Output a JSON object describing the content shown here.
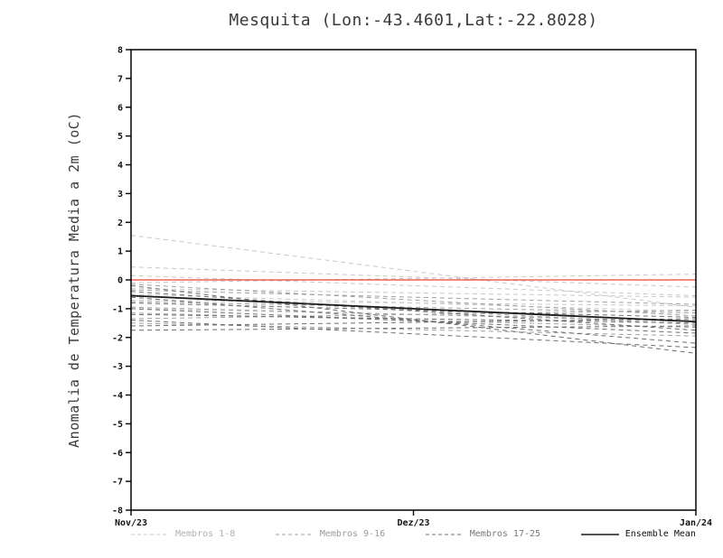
{
  "chart_data": {
    "type": "line",
    "title": "Mesquita (Lon:-43.4601,Lat:-22.8028)",
    "ylabel": "Anomalia de Temperatura Media a 2m (oC)",
    "ylim": [
      -8,
      8
    ],
    "ytick_step": 1,
    "x_labels": [
      "Nov/23",
      "Dez/23",
      "Jan/24"
    ],
    "x_positions": [
      0,
      0.5,
      1
    ],
    "grid": false,
    "legend_position": "bottom",
    "reference_line": {
      "value": 0,
      "color": "#f04038"
    },
    "series": [
      {
        "name": "Membros 1-8",
        "color": "#c8c8c8",
        "legend_text_color": "#b2b2b2",
        "dashed": true,
        "members": [
          [
            1.55,
            -0.95
          ],
          [
            0.45,
            -0.25
          ],
          [
            0.15,
            -0.55
          ],
          [
            -0.1,
            0.2
          ],
          [
            -0.3,
            -0.6
          ],
          [
            -0.5,
            -1.1
          ],
          [
            -0.7,
            -0.9
          ],
          [
            -1.0,
            -1.4
          ]
        ]
      },
      {
        "name": "Membros 9-16",
        "color": "#a0a0a0",
        "legend_text_color": "#9a9a9a",
        "dashed": true,
        "members": [
          [
            -0.15,
            -1.25
          ],
          [
            -0.35,
            -0.85
          ],
          [
            -0.55,
            -1.55
          ],
          [
            -0.75,
            -1.15
          ],
          [
            -0.95,
            -1.45
          ],
          [
            -1.15,
            -1.65
          ],
          [
            -1.35,
            -1.05
          ],
          [
            -1.5,
            -1.95
          ]
        ]
      },
      {
        "name": "Membros 17-25",
        "color": "#6e6e6e",
        "legend_text_color": "#787878",
        "dashed": true,
        "members": [
          [
            -0.2,
            -2.55
          ],
          [
            -0.4,
            -1.75
          ],
          [
            -0.6,
            -2.2
          ],
          [
            -0.8,
            -1.3
          ],
          [
            -1.0,
            -1.85
          ],
          [
            -1.2,
            -1.5
          ],
          [
            -1.4,
            -2.35
          ],
          [
            -1.6,
            -1.35
          ],
          [
            -1.75,
            -1.6
          ]
        ]
      },
      {
        "name": "Ensemble Mean",
        "color": "#1a1a1a",
        "legend_text_color": "#111111",
        "dashed": false,
        "members": [
          [
            -0.55,
            -1.45
          ]
        ]
      }
    ]
  }
}
